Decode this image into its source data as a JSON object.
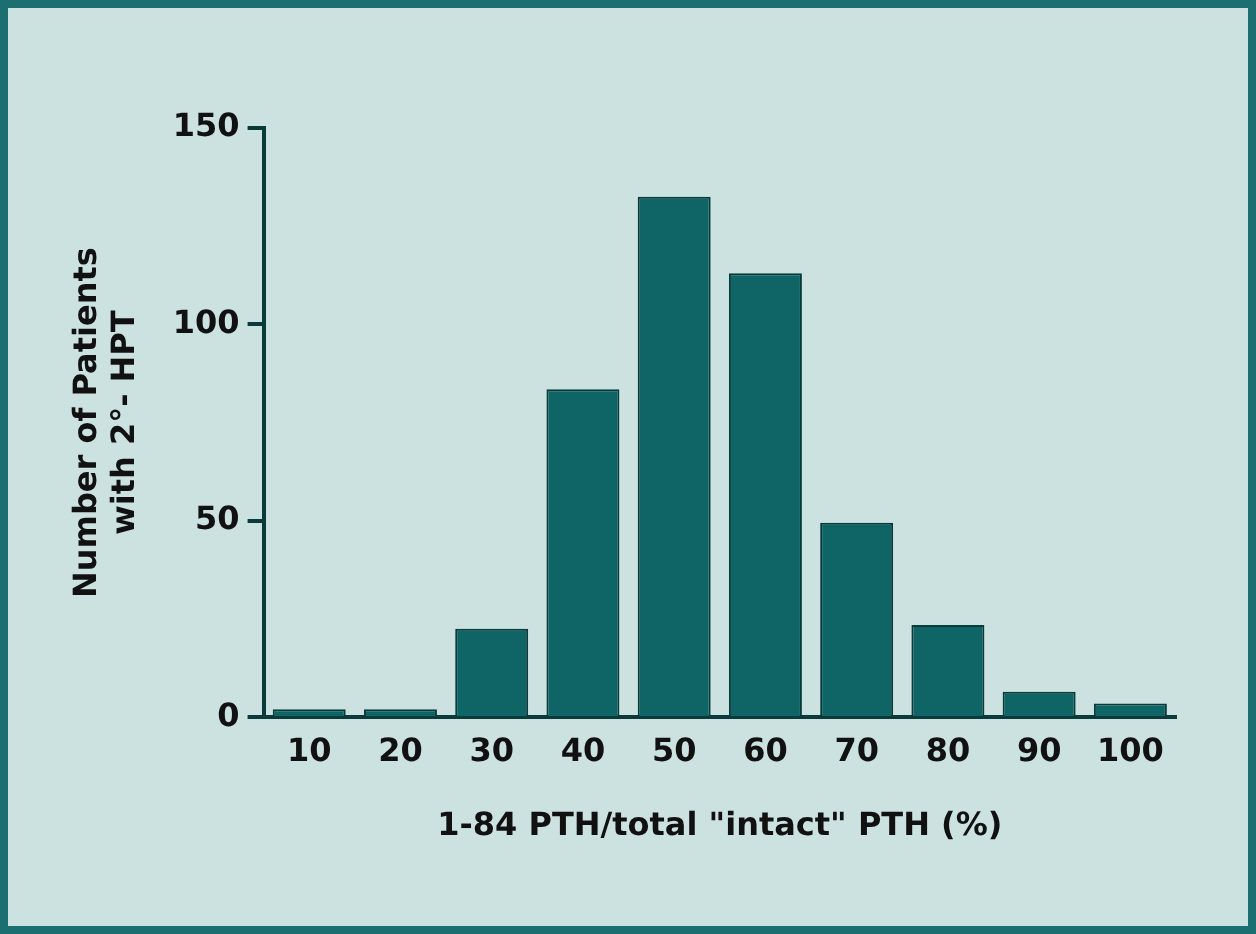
{
  "chart_data": {
    "type": "bar",
    "xlabel": "1-84 PTH/total \"intact\" PTH (%)",
    "ylabel": "Number of Patients\nwith 2°- HPT",
    "categories": [
      "10",
      "20",
      "30",
      "40",
      "50",
      "60",
      "70",
      "80",
      "90",
      "100"
    ],
    "values": [
      2,
      2,
      22.5,
      83.5,
      132.5,
      113,
      49.5,
      23.5,
      6.5,
      3.5
    ],
    "color": "#0f6566",
    "ylim": [
      0,
      150
    ],
    "yticks": [
      0,
      50,
      100,
      150
    ],
    "grid": false,
    "legend": false
  }
}
